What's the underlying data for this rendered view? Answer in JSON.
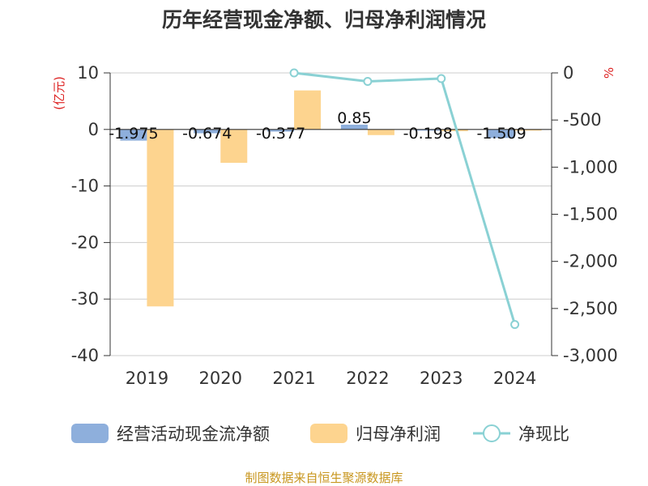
{
  "page": {
    "title": "历年经营现金净额、归母净利润情况",
    "source": "制图数据来自恒生聚源数据库"
  },
  "colors": {
    "cash": "#8eafdc",
    "profit": "#fdd48f",
    "ratio": "#8ad1d4",
    "unit": "#dd2222",
    "source": "#c8961e",
    "grid": "#cccccc",
    "text": "#333333"
  },
  "chart_data": {
    "type": "bar+line",
    "title": "历年经营现金净额、归母净利润情况",
    "categories": [
      "2019",
      "2020",
      "2021",
      "2022",
      "2023",
      "2024"
    ],
    "y_left": {
      "unit": "(亿元)",
      "min": -40,
      "max": 10,
      "ticks": [
        10,
        0,
        -10,
        -20,
        -30,
        -40
      ],
      "tick_labels": [
        "10",
        "0",
        "-10",
        "-20",
        "-30",
        "-40"
      ]
    },
    "y_right": {
      "unit": "%",
      "min": -3000,
      "max": 0,
      "ticks": [
        0,
        -500,
        -1000,
        -1500,
        -2000,
        -2500,
        -3000
      ],
      "tick_labels": [
        "0",
        "-500",
        "-1,000",
        "-1,500",
        "-2,000",
        "-2,500",
        "-3,000"
      ]
    },
    "series": [
      {
        "name": "经营活动现金流净额",
        "type": "bar",
        "axis": "left",
        "values": [
          -1.975,
          -0.674,
          -0.377,
          0.85,
          -0.198,
          -1.509
        ],
        "labels": [
          "-1.975",
          "-0.674",
          "-0.377",
          "0.85",
          "-0.198",
          "-1.509"
        ]
      },
      {
        "name": "归母净利润",
        "type": "bar",
        "axis": "left",
        "values": [
          -31.3,
          -5.9,
          6.9,
          -1.0,
          -0.3,
          -0.1
        ]
      },
      {
        "name": "净现比",
        "type": "line",
        "axis": "right",
        "values": [
          null,
          null,
          0,
          -90,
          -60,
          -2670
        ]
      }
    ],
    "legend": "bottom"
  }
}
